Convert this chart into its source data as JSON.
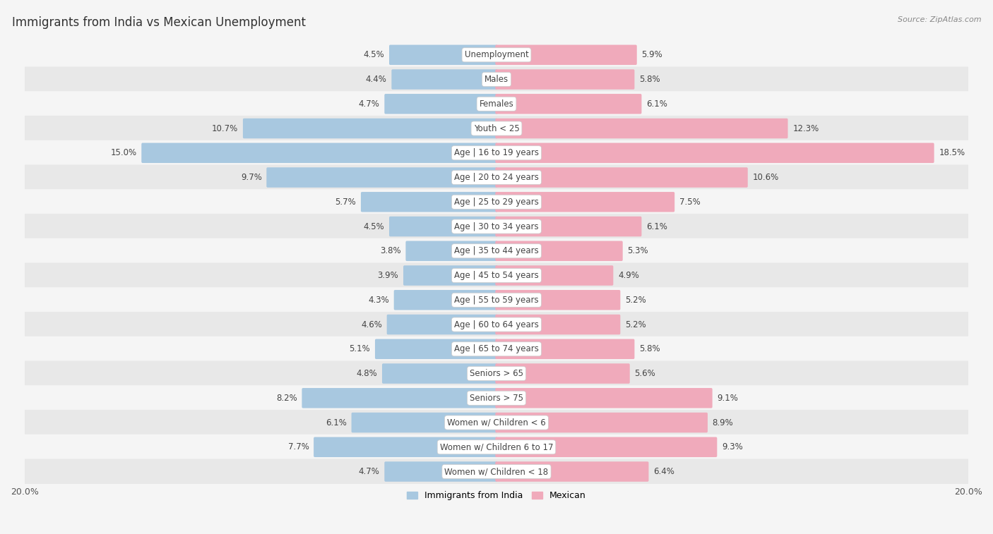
{
  "title": "Immigrants from India vs Mexican Unemployment",
  "source": "Source: ZipAtlas.com",
  "categories": [
    "Unemployment",
    "Males",
    "Females",
    "Youth < 25",
    "Age | 16 to 19 years",
    "Age | 20 to 24 years",
    "Age | 25 to 29 years",
    "Age | 30 to 34 years",
    "Age | 35 to 44 years",
    "Age | 45 to 54 years",
    "Age | 55 to 59 years",
    "Age | 60 to 64 years",
    "Age | 65 to 74 years",
    "Seniors > 65",
    "Seniors > 75",
    "Women w/ Children < 6",
    "Women w/ Children 6 to 17",
    "Women w/ Children < 18"
  ],
  "india_values": [
    4.5,
    4.4,
    4.7,
    10.7,
    15.0,
    9.7,
    5.7,
    4.5,
    3.8,
    3.9,
    4.3,
    4.6,
    5.1,
    4.8,
    8.2,
    6.1,
    7.7,
    4.7
  ],
  "mexican_values": [
    5.9,
    5.8,
    6.1,
    12.3,
    18.5,
    10.6,
    7.5,
    6.1,
    5.3,
    4.9,
    5.2,
    5.2,
    5.8,
    5.6,
    9.1,
    8.9,
    9.3,
    6.4
  ],
  "india_color": "#a8c8e0",
  "mexican_color": "#f0aabb",
  "india_label": "Immigrants from India",
  "mexican_label": "Mexican",
  "xlim": 20.0,
  "bg_light": "#f5f5f5",
  "bg_dark": "#e8e8e8",
  "bar_height": 0.72,
  "title_fontsize": 12,
  "label_fontsize": 8.5,
  "value_fontsize": 8.5
}
